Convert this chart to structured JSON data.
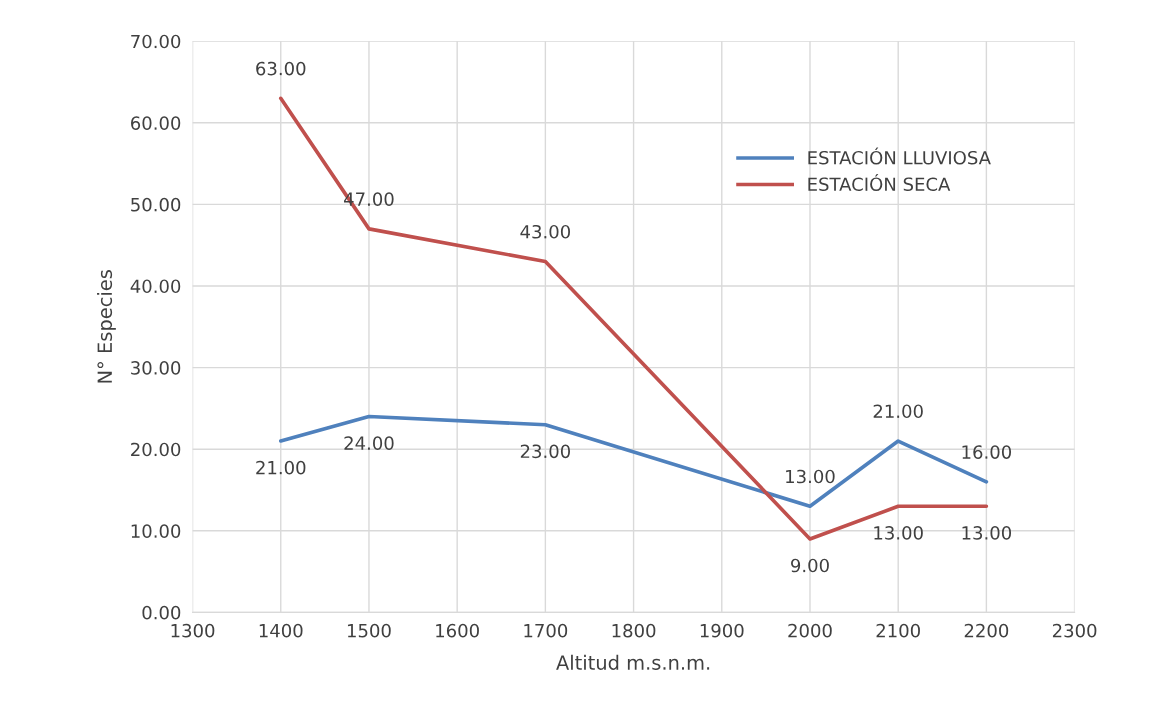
{
  "chart_data": {
    "type": "line",
    "xlabel": "Altitud m.s.n.m.",
    "ylabel": "N° Especies",
    "x": [
      1400,
      1500,
      1700,
      2000,
      2100,
      2200
    ],
    "series": [
      {
        "name": "ESTACIÓN LLUVIOSA",
        "color": "#4f81bd",
        "values": [
          21,
          24,
          23,
          13,
          21,
          16
        ],
        "value_labels": [
          "21.00",
          "24.00",
          "23.00",
          "13.00",
          "21.00",
          "16.00"
        ]
      },
      {
        "name": "ESTACIÓN SECA",
        "color": "#c0504d",
        "values": [
          63,
          47,
          43,
          9,
          13,
          13
        ],
        "value_labels": [
          "63.00",
          "47.00",
          "43.00",
          "9.00",
          "13.00",
          "13.00"
        ]
      }
    ],
    "xlim": [
      1300,
      2300
    ],
    "xticks": [
      1300,
      1400,
      1500,
      1600,
      1700,
      1800,
      1900,
      2000,
      2100,
      2200,
      2300
    ],
    "ylim": [
      0,
      70
    ],
    "yticks": [
      {
        "value": 0,
        "label": "0.00"
      },
      {
        "value": 10,
        "label": "10.00"
      },
      {
        "value": 20,
        "label": "20.00"
      },
      {
        "value": 30,
        "label": "30.00"
      },
      {
        "value": 40,
        "label": "40.00"
      },
      {
        "value": 50,
        "label": "50.00"
      },
      {
        "value": 60,
        "label": "60.00"
      },
      {
        "value": 70,
        "label": "70.00"
      }
    ],
    "grid": true,
    "legend": "right",
    "marker": "none",
    "line_style": "solid"
  }
}
